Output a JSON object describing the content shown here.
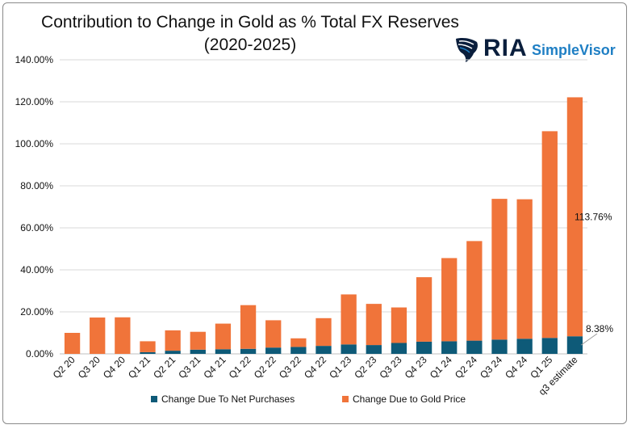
{
  "title_line1": "Contribution to Change in Gold as % Total FX Reserves",
  "title_line2": "(2020-2025)",
  "logo": {
    "icon": "eagle-icon",
    "brand": "RIA",
    "product": "SimpleVisor"
  },
  "colors": {
    "net_purchases": "#0e5a78",
    "gold_price": "#f0743a"
  },
  "chart_data": {
    "type": "bar",
    "stacked": true,
    "categories": [
      "Q2 20",
      "Q3 20",
      "Q4 20",
      "Q1 21",
      "Q2 21",
      "Q3 21",
      "Q4 21",
      "Q1 22",
      "Q2 22",
      "Q3 22",
      "Q4 22",
      "Q1 23",
      "Q2 23",
      "Q3 23",
      "Q4 23",
      "Q1 24",
      "Q2 24",
      "Q3 24",
      "Q4 24",
      "Q1 25",
      "q3 estimate"
    ],
    "series": [
      {
        "name": "Change Due To Net Purchases",
        "values": [
          0.0,
          0.0,
          0.0,
          0.8,
          1.5,
          2.0,
          2.2,
          2.4,
          3.0,
          3.3,
          3.8,
          4.5,
          4.2,
          5.2,
          5.8,
          6.0,
          6.3,
          6.8,
          7.2,
          7.6,
          8.38
        ]
      },
      {
        "name": "Change Due to Gold Price",
        "values": [
          10.0,
          17.3,
          17.4,
          5.2,
          9.7,
          8.5,
          12.2,
          20.8,
          13.0,
          4.1,
          13.2,
          23.8,
          19.6,
          16.9,
          30.7,
          39.6,
          47.4,
          67.0,
          66.4,
          98.4,
          113.76
        ]
      }
    ],
    "annotations": [
      {
        "category": "q3 estimate",
        "series": "Change Due to Gold Price",
        "label": "113.76%"
      },
      {
        "category": "q3 estimate",
        "series": "Change Due To Net Purchases",
        "label": "8.38%"
      }
    ],
    "yticks": [
      "0.00%",
      "20.00%",
      "40.00%",
      "60.00%",
      "80.00%",
      "100.00%",
      "120.00%",
      "140.00%"
    ],
    "ylim": [
      0,
      140
    ],
    "grid": true,
    "legend_position": "bottom"
  }
}
